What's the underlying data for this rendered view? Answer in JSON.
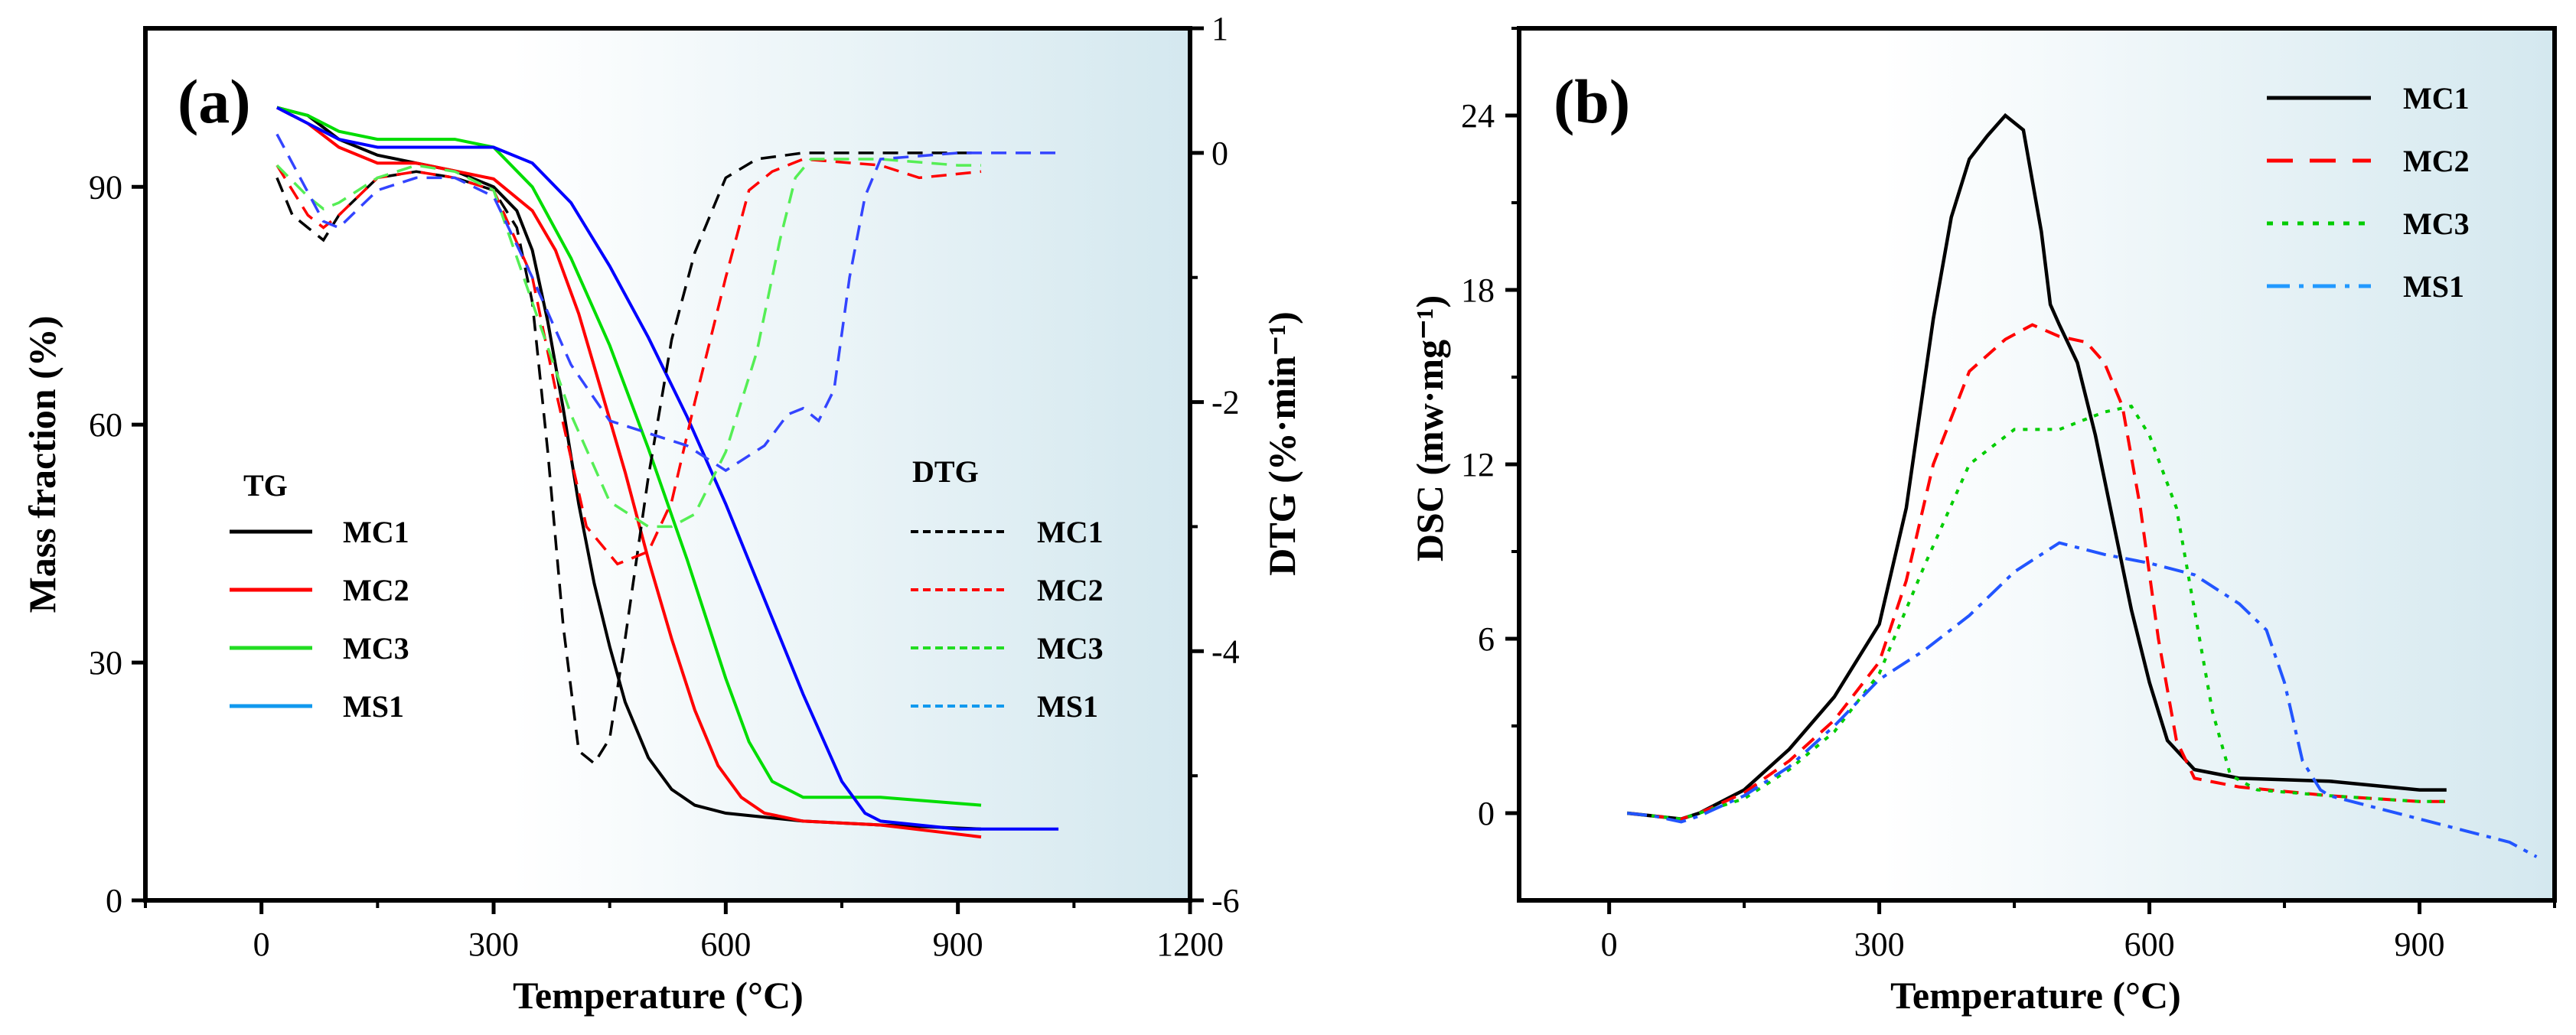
{
  "figure": {
    "panels": [
      "(a)",
      "(b)"
    ]
  },
  "chart_data": [
    {
      "type": "line",
      "panel_label": "(a)",
      "xlabel": "Temperature (°C)",
      "ylabel": "Mass fraction (%)",
      "y2label": "DTG (%·min⁻¹)",
      "xlim": [
        -150,
        1200
      ],
      "ylim": [
        0,
        110
      ],
      "y2lim": [
        -6,
        1
      ],
      "x_ticks": [
        0,
        300,
        600,
        900,
        1200
      ],
      "y_ticks": [
        0,
        30,
        60,
        90
      ],
      "y2_ticks": [
        -6,
        -4,
        -2,
        0,
        1
      ],
      "grid": false,
      "background": "gradient white to light blue (right side)",
      "legend_tg": {
        "title": "TG",
        "placement": "center-left",
        "entries": [
          "MC1",
          "MC2",
          "MC3",
          "MS1"
        ]
      },
      "legend_dtg": {
        "title": "DTG",
        "placement": "center-right",
        "entries": [
          "MC1",
          "MC2",
          "MC3",
          "MS1"
        ]
      },
      "series": [
        {
          "name": "MC1",
          "group": "TG",
          "axis": "left",
          "color": "#000000",
          "dash": "solid",
          "x": [
            20,
            60,
            100,
            150,
            200,
            250,
            300,
            330,
            350,
            370,
            390,
            410,
            430,
            450,
            470,
            500,
            530,
            560,
            600,
            700,
            800,
            930
          ],
          "y": [
            100,
            99,
            96,
            94,
            93,
            92,
            90,
            87,
            82,
            73,
            62,
            50,
            40,
            32,
            25,
            18,
            14,
            12,
            11,
            10,
            9.5,
            9
          ]
        },
        {
          "name": "MC2",
          "group": "TG",
          "axis": "left",
          "color": "#ff0000",
          "dash": "solid",
          "x": [
            20,
            60,
            100,
            150,
            200,
            250,
            300,
            350,
            380,
            410,
            440,
            470,
            500,
            530,
            560,
            590,
            620,
            650,
            700,
            800,
            930
          ],
          "y": [
            100,
            98,
            95,
            93,
            93,
            92,
            91,
            87,
            82,
            74,
            64,
            54,
            43,
            33,
            24,
            17,
            13,
            11,
            10,
            9.5,
            8
          ]
        },
        {
          "name": "MC3",
          "group": "TG",
          "axis": "left",
          "color": "#00dd00",
          "dash": "solid",
          "x": [
            20,
            60,
            100,
            150,
            200,
            250,
            300,
            350,
            400,
            450,
            500,
            550,
            600,
            630,
            660,
            700,
            800,
            930
          ],
          "y": [
            100,
            99,
            97,
            96,
            96,
            96,
            95,
            90,
            81,
            70,
            57,
            43,
            28,
            20,
            15,
            13,
            13,
            12
          ]
        },
        {
          "name": "MS1",
          "group": "TG",
          "axis": "left",
          "color": "#0000ff",
          "dash": "solid",
          "x": [
            20,
            60,
            100,
            150,
            200,
            250,
            300,
            350,
            400,
            450,
            500,
            550,
            600,
            650,
            700,
            750,
            780,
            800,
            900,
            1030
          ],
          "y": [
            100,
            98,
            96,
            95,
            95,
            95,
            95,
            93,
            88,
            80,
            71,
            61,
            50,
            38,
            26,
            15,
            11,
            10,
            9,
            9
          ]
        },
        {
          "name": "MC1",
          "group": "DTG",
          "axis": "right",
          "color": "#000000",
          "dash": "dashed",
          "x": [
            20,
            40,
            60,
            80,
            100,
            150,
            200,
            250,
            300,
            330,
            350,
            370,
            390,
            410,
            430,
            450,
            470,
            500,
            530,
            560,
            600,
            640,
            700,
            800,
            900,
            930
          ],
          "y": [
            -0.2,
            -0.5,
            -0.6,
            -0.7,
            -0.5,
            -0.2,
            -0.15,
            -0.2,
            -0.3,
            -0.6,
            -1.2,
            -2.4,
            -3.8,
            -4.8,
            -4.9,
            -4.7,
            -3.9,
            -2.6,
            -1.5,
            -0.8,
            -0.2,
            -0.05,
            0,
            0,
            0,
            0
          ]
        },
        {
          "name": "MC2",
          "group": "DTG",
          "axis": "right",
          "color": "#ff0000",
          "dash": "dashed",
          "x": [
            20,
            60,
            80,
            100,
            150,
            200,
            250,
            300,
            350,
            380,
            420,
            460,
            500,
            530,
            560,
            600,
            630,
            660,
            700,
            800,
            850,
            930
          ],
          "y": [
            -0.1,
            -0.5,
            -0.6,
            -0.5,
            -0.2,
            -0.15,
            -0.2,
            -0.3,
            -1.0,
            -1.9,
            -3.0,
            -3.3,
            -3.2,
            -2.8,
            -2.0,
            -1.0,
            -0.3,
            -0.15,
            -0.05,
            -0.1,
            -0.2,
            -0.15
          ]
        },
        {
          "name": "MC3",
          "group": "DTG",
          "axis": "right",
          "color": "#55ee55",
          "dash": "dashed",
          "x": [
            20,
            60,
            80,
            100,
            150,
            200,
            250,
            300,
            350,
            400,
            450,
            500,
            530,
            560,
            600,
            640,
            670,
            690,
            710,
            800,
            900,
            930
          ],
          "y": [
            -0.1,
            -0.35,
            -0.45,
            -0.4,
            -0.2,
            -0.1,
            -0.15,
            -0.3,
            -1.2,
            -2.1,
            -2.8,
            -3.0,
            -3.0,
            -2.9,
            -2.4,
            -1.6,
            -0.7,
            -0.2,
            -0.05,
            -0.05,
            -0.1,
            -0.1
          ]
        },
        {
          "name": "MS1",
          "group": "DTG",
          "axis": "right",
          "color": "#3344ff",
          "dash": "dashed",
          "x": [
            20,
            50,
            80,
            100,
            150,
            200,
            250,
            300,
            350,
            400,
            450,
            500,
            550,
            600,
            650,
            680,
            700,
            720,
            740,
            760,
            780,
            800,
            900,
            1030
          ],
          "y": [
            0.15,
            -0.2,
            -0.55,
            -0.6,
            -0.3,
            -0.2,
            -0.2,
            -0.35,
            -1.0,
            -1.7,
            -2.15,
            -2.25,
            -2.35,
            -2.55,
            -2.35,
            -2.1,
            -2.05,
            -2.15,
            -1.9,
            -1.0,
            -0.35,
            -0.05,
            0,
            0
          ]
        }
      ]
    },
    {
      "type": "line",
      "panel_label": "(b)",
      "xlabel": "Temperature (°C)",
      "ylabel": "DSC (mw·mg⁻¹)",
      "xlim": [
        -100,
        1050
      ],
      "ylim": [
        -3,
        27
      ],
      "x_ticks": [
        0,
        300,
        600,
        900
      ],
      "y_ticks": [
        0,
        6,
        12,
        18,
        24
      ],
      "grid": false,
      "background": "gradient white to light blue (right side)",
      "legend": {
        "placement": "top-right",
        "entries": [
          "MC1",
          "MC2",
          "MC3",
          "MS1"
        ]
      },
      "series": [
        {
          "name": "MC1",
          "color": "#000000",
          "dash": "solid",
          "x": [
            20,
            50,
            80,
            100,
            150,
            200,
            250,
            300,
            330,
            360,
            380,
            400,
            420,
            440,
            460,
            480,
            490,
            500,
            520,
            540,
            560,
            580,
            600,
            620,
            650,
            700,
            800,
            900,
            930
          ],
          "y": [
            0,
            -0.1,
            -0.2,
            0,
            0.8,
            2.2,
            4.0,
            6.5,
            10.5,
            17,
            20.5,
            22.5,
            23.3,
            24,
            23.5,
            20,
            17.5,
            16.8,
            15.5,
            13,
            10,
            7,
            4.5,
            2.5,
            1.5,
            1.2,
            1.1,
            0.8,
            0.8
          ]
        },
        {
          "name": "MC2",
          "color": "#ff0000",
          "dash": "dashed",
          "x": [
            20,
            50,
            80,
            100,
            150,
            200,
            250,
            300,
            330,
            360,
            400,
            440,
            470,
            500,
            530,
            550,
            570,
            590,
            610,
            630,
            650,
            700,
            800,
            900,
            930
          ],
          "y": [
            0,
            -0.1,
            -0.2,
            0,
            0.7,
            1.8,
            3.2,
            5.2,
            8,
            12,
            15.2,
            16.3,
            16.8,
            16.4,
            16.2,
            15.5,
            14,
            10.5,
            6,
            2.5,
            1.2,
            0.9,
            0.6,
            0.4,
            0.4
          ]
        },
        {
          "name": "MC3",
          "color": "#00cc00",
          "dash": "dotted",
          "x": [
            20,
            50,
            80,
            100,
            150,
            200,
            250,
            300,
            350,
            400,
            450,
            500,
            550,
            580,
            600,
            630,
            650,
            670,
            690,
            720,
            800,
            900,
            930
          ],
          "y": [
            0,
            -0.1,
            -0.2,
            0,
            0.5,
            1.5,
            2.8,
            4.8,
            8.5,
            12,
            13.2,
            13.2,
            13.8,
            14,
            13,
            10.5,
            7,
            3.5,
            1.3,
            0.8,
            0.6,
            0.4,
            0.4
          ]
        },
        {
          "name": "MS1",
          "color": "#2255ff",
          "dash": "dashdot",
          "x": [
            20,
            50,
            80,
            100,
            150,
            200,
            250,
            300,
            350,
            400,
            450,
            500,
            550,
            600,
            650,
            700,
            730,
            750,
            770,
            790,
            800,
            850,
            900,
            950,
            1000,
            1030
          ],
          "y": [
            0,
            -0.1,
            -0.3,
            -0.1,
            0.6,
            1.6,
            3.0,
            4.6,
            5.6,
            6.8,
            8.3,
            9.3,
            8.9,
            8.6,
            8.2,
            7.2,
            6.3,
            4.5,
            1.8,
            0.8,
            0.6,
            0.2,
            -0.2,
            -0.6,
            -1.0,
            -1.5
          ]
        }
      ]
    }
  ]
}
